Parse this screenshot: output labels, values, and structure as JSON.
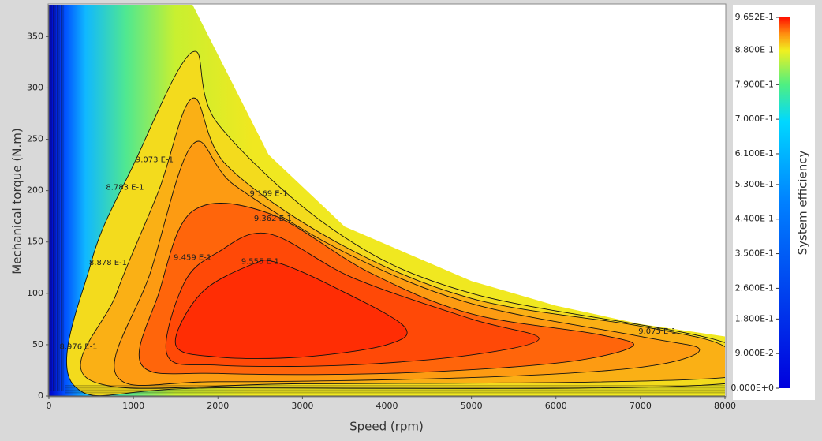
{
  "chart_data": {
    "type": "contour",
    "xlabel": "Speed (rpm)",
    "ylabel": "Mechanical torque (N.m)",
    "xlim": [
      0,
      8000
    ],
    "xticks": [
      0,
      1000,
      2000,
      3000,
      4000,
      5000,
      6000,
      7000,
      8000
    ],
    "ylim": [
      0,
      381
    ],
    "yticks": [
      0,
      50,
      100,
      150,
      200,
      250,
      300,
      350
    ],
    "envelope": {
      "x": [
        0,
        1700,
        2600,
        3500,
        5000,
        6000,
        7000,
        8000,
        8000,
        0
      ],
      "y": [
        381,
        381,
        235,
        165,
        112,
        88,
        70,
        58,
        0,
        0
      ]
    },
    "contours": [
      {
        "level": 0.8878,
        "x": [
          300,
          500,
          1000,
          1700,
          2000,
          3400,
          5000,
          8000,
          8000,
          2000
        ],
        "y": [
          10,
          130,
          225,
          335,
          265,
          160,
          100,
          52,
          12,
          8
        ]
      },
      {
        "level": 0.9073,
        "x": [
          500,
          800,
          1300,
          1700,
          2100,
          3400,
          5000,
          7000,
          8000,
          8000,
          3000
        ],
        "y": [
          15,
          100,
          200,
          290,
          225,
          150,
          95,
          68,
          48,
          18,
          12
        ]
      },
      {
        "level": 0.9169,
        "x": [
          800,
          1200,
          1700,
          2200,
          3500,
          5000,
          7000,
          7700,
          7000,
          5000,
          2000
        ],
        "y": [
          20,
          120,
          245,
          205,
          140,
          90,
          58,
          45,
          28,
          18,
          14
        ]
      },
      {
        "level": 0.9362,
        "x": [
          1100,
          1300,
          1700,
          2600,
          3800,
          5000,
          6500,
          6900,
          6000,
          4000,
          2000
        ],
        "y": [
          30,
          100,
          180,
          178,
          120,
          80,
          60,
          48,
          32,
          22,
          22
        ]
      },
      {
        "level": 0.9459,
        "x": [
          1400,
          1600,
          2000,
          2600,
          3600,
          5000,
          5800,
          5000,
          3500,
          2000
        ],
        "y": [
          40,
          110,
          140,
          158,
          115,
          75,
          56,
          40,
          30,
          30
        ]
      },
      {
        "level": 0.9555,
        "x": [
          1500,
          1800,
          2400,
          2700,
          3400,
          4200,
          4000,
          3000,
          2000
        ],
        "y": [
          50,
          100,
          128,
          130,
          105,
          68,
          50,
          38,
          38
        ]
      }
    ],
    "contour_labels": [
      {
        "text": "9.073 E-1",
        "x": 1250,
        "y": 230
      },
      {
        "text": "8.783 E-1",
        "x": 900,
        "y": 203
      },
      {
        "text": "9.169 E-1",
        "x": 2600,
        "y": 197
      },
      {
        "text": "9.362 E-1",
        "x": 2650,
        "y": 173
      },
      {
        "text": "9.459 E-1",
        "x": 1700,
        "y": 135
      },
      {
        "text": "9.555 E-1",
        "x": 2500,
        "y": 131
      },
      {
        "text": "8.878 E-1",
        "x": 700,
        "y": 130
      },
      {
        "text": "8.976 E-1",
        "x": 350,
        "y": 48
      },
      {
        "text": "9.073 E-1",
        "x": 7200,
        "y": 63
      }
    ],
    "colorbar": {
      "label": "System efficiency",
      "lim": [
        0,
        0.9652
      ],
      "ticks": [
        {
          "value": 0.9652,
          "label": "9.652E-1"
        },
        {
          "value": 0.88,
          "label": "8.800E-1"
        },
        {
          "value": 0.79,
          "label": "7.900E-1"
        },
        {
          "value": 0.7,
          "label": "7.000E-1"
        },
        {
          "value": 0.61,
          "label": "6.100E-1"
        },
        {
          "value": 0.53,
          "label": "5.300E-1"
        },
        {
          "value": 0.44,
          "label": "4.400E-1"
        },
        {
          "value": 0.35,
          "label": "3.500E-1"
        },
        {
          "value": 0.26,
          "label": "2.600E-1"
        },
        {
          "value": 0.18,
          "label": "1.800E-1"
        },
        {
          "value": 0.09,
          "label": "9.000E-2"
        },
        {
          "value": 0,
          "label": "0.000E+0"
        }
      ]
    }
  }
}
